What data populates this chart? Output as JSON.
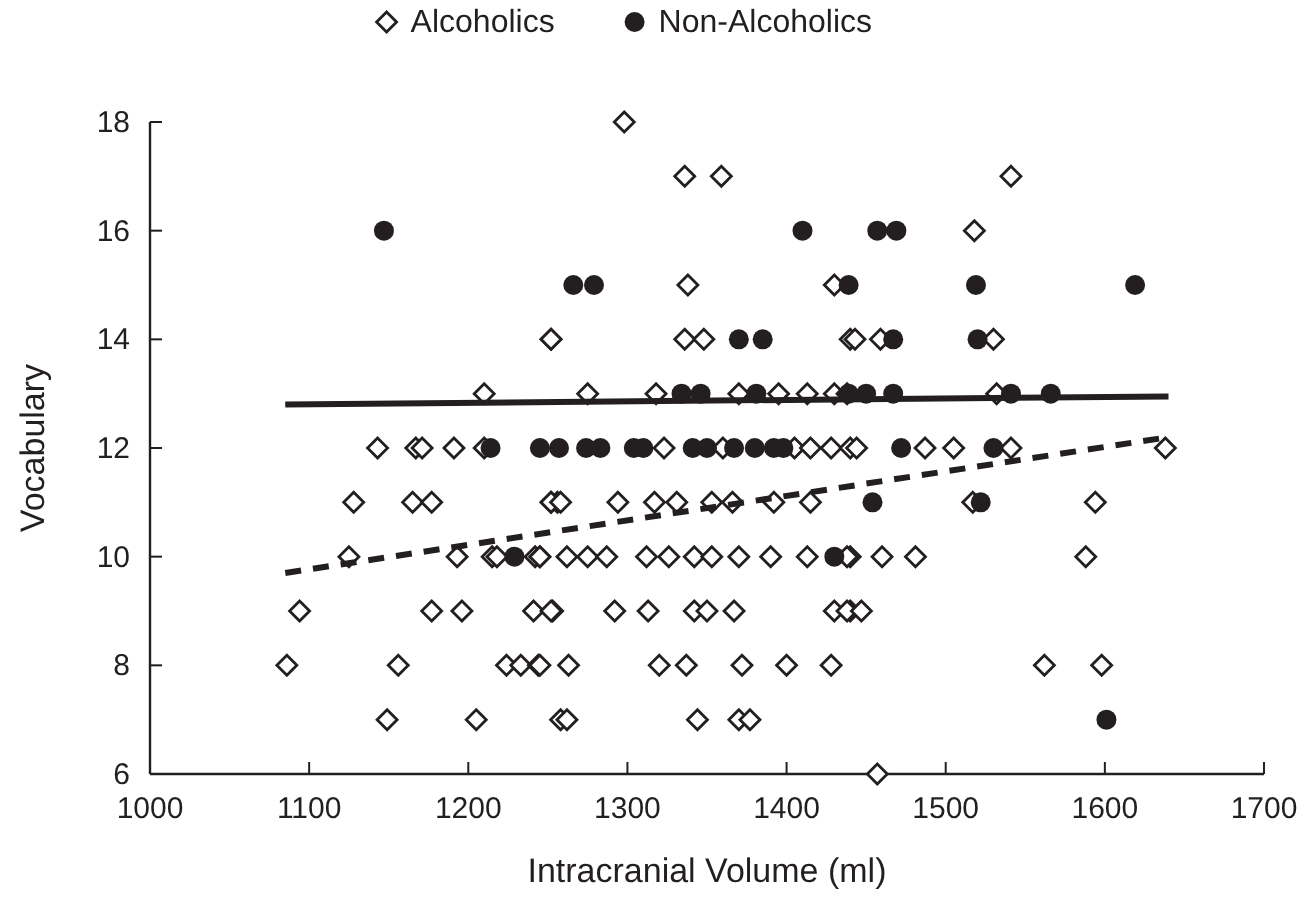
{
  "chart_data": {
    "type": "scatter",
    "xlabel": "Intracranial Volume (ml)",
    "ylabel": "Vocabulary",
    "xlim": [
      1000,
      1700
    ],
    "xticks": [
      1000,
      1100,
      1200,
      1300,
      1400,
      1500,
      1600,
      1700
    ],
    "ylim": [
      6,
      18
    ],
    "yticks": [
      6,
      8,
      10,
      12,
      14,
      16,
      18
    ],
    "grid": false,
    "legend": "top",
    "series": [
      {
        "name": "Alcoholics",
        "type": "scatter",
        "marker": "diamond",
        "color": "#231f20",
        "x": [
          1252,
          1210,
          1143,
          1167,
          1171,
          1191,
          1210,
          1128,
          1165,
          1177,
          1252,
          1256,
          1125,
          1193,
          1215,
          1218,
          1242,
          1245,
          1094,
          1177,
          1196,
          1241,
          1253,
          1086,
          1156,
          1224,
          1233,
          1244,
          1149,
          1205,
          1258,
          1298,
          1336,
          1359,
          1338,
          1430,
          1252,
          1336,
          1348,
          1440,
          1275,
          1318,
          1370,
          1395,
          1413,
          1430,
          1323,
          1360,
          1405,
          1415,
          1428,
          1440,
          1252,
          1258,
          1294,
          1317,
          1331,
          1353,
          1366,
          1392,
          1415,
          1245,
          1262,
          1275,
          1287,
          1312,
          1326,
          1342,
          1353,
          1370,
          1390,
          1413,
          1440,
          1252,
          1292,
          1313,
          1342,
          1350,
          1367,
          1430,
          1440,
          1245,
          1263,
          1320,
          1337,
          1372,
          1400,
          1428,
          1262,
          1344,
          1370,
          1377,
          1541,
          1518,
          1443,
          1459,
          1530,
          1438,
          1532,
          1444,
          1487,
          1505,
          1541,
          1638,
          1517,
          1594,
          1438,
          1460,
          1481,
          1588,
          1438,
          1447,
          1562,
          1598,
          1457
        ],
        "values": [
          14,
          13,
          12,
          12,
          12,
          12,
          12,
          11,
          11,
          11,
          11,
          11,
          10,
          10,
          10,
          10,
          10,
          10,
          9,
          9,
          9,
          9,
          9,
          8,
          8,
          8,
          8,
          8,
          7,
          7,
          7,
          18,
          17,
          17,
          15,
          15,
          14,
          14,
          14,
          14,
          13,
          13,
          13,
          13,
          13,
          13,
          12,
          12,
          12,
          12,
          12,
          12,
          11,
          11,
          11,
          11,
          11,
          11,
          11,
          11,
          11,
          10,
          10,
          10,
          10,
          10,
          10,
          10,
          10,
          10,
          10,
          10,
          10,
          9,
          9,
          9,
          9,
          9,
          9,
          9,
          9,
          8,
          8,
          8,
          8,
          8,
          8,
          8,
          7,
          7,
          7,
          7,
          17,
          16,
          14,
          14,
          14,
          13,
          13,
          12,
          12,
          12,
          12,
          12,
          11,
          11,
          10,
          10,
          10,
          10,
          9,
          9,
          8,
          8,
          6
        ]
      },
      {
        "name": "Non-Alcoholics",
        "type": "scatter",
        "marker": "circle",
        "color": "#231f20",
        "x": [
          1147,
          1214,
          1245,
          1257,
          1229,
          1410,
          1266,
          1279,
          1439,
          1370,
          1385,
          1334,
          1346,
          1381,
          1439,
          1274,
          1283,
          1304,
          1310,
          1341,
          1350,
          1367,
          1380,
          1392,
          1398,
          1430,
          1457,
          1469,
          1519,
          1619,
          1467,
          1520,
          1450,
          1467,
          1541,
          1566,
          1472,
          1530,
          1454,
          1522,
          1601
        ],
        "values": [
          16,
          12,
          12,
          12,
          10,
          16,
          15,
          15,
          15,
          14,
          14,
          13,
          13,
          13,
          13,
          12,
          12,
          12,
          12,
          12,
          12,
          12,
          12,
          12,
          12,
          10,
          16,
          16,
          15,
          15,
          14,
          14,
          13,
          13,
          13,
          13,
          12,
          12,
          11,
          11,
          7
        ]
      },
      {
        "type": "line",
        "line_style": "solid",
        "color": "#231f20",
        "x": [
          1085,
          1640
        ],
        "values": [
          12.8,
          12.95
        ]
      },
      {
        "type": "line",
        "line_style": "dashed",
        "color": "#231f20",
        "x": [
          1085,
          1640
        ],
        "values": [
          9.7,
          12.2
        ]
      }
    ]
  }
}
